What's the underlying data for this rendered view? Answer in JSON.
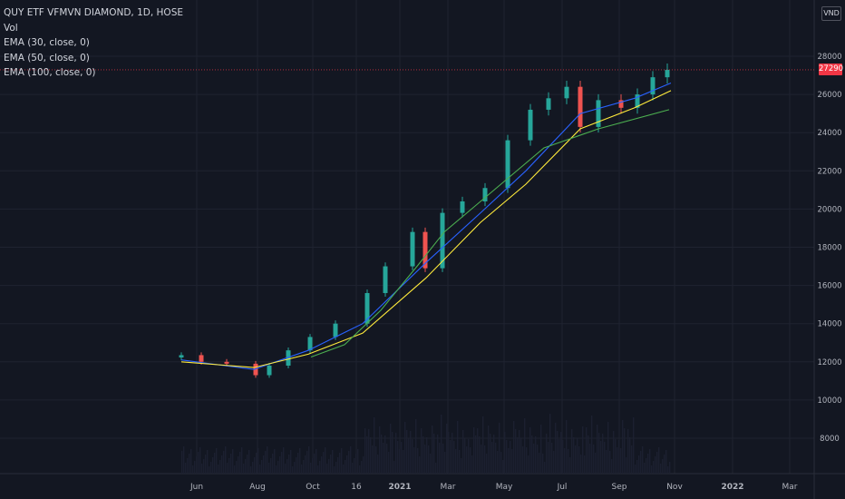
{
  "legend": {
    "title": "QUY ETF VFMVN DIAMOND, 1D, HOSE",
    "vol": "Vol",
    "ema30": "EMA (30, close, 0)",
    "ema50": "EMA (50, close, 0)",
    "ema100": "EMA (100, close, 0)"
  },
  "currency": "VND",
  "last_price_label": "27290",
  "colors": {
    "background": "#131722",
    "grid": "#1f2330",
    "up": "#26a69a",
    "down": "#ef5350",
    "ema30": "#2962ff",
    "ema50": "#ffeb3b",
    "ema100": "#4caf50",
    "last_price": "#f23645",
    "axis_text": "#b2b5be"
  },
  "chart_data": {
    "type": "candlestick",
    "title": "QUY ETF VFMVN DIAMOND, 1D, HOSE",
    "ylim": [
      7000,
      28500
    ],
    "y_ticks": [
      8000,
      10000,
      12000,
      14000,
      16000,
      18000,
      20000,
      22000,
      24000,
      26000,
      28000
    ],
    "x_ticks": [
      "Jun",
      "Aug",
      "Oct",
      "16",
      "2021",
      "Mar",
      "May",
      "Jul",
      "Sep",
      "Nov",
      "2022",
      "Mar"
    ],
    "last_price": 27290,
    "candles": [
      {
        "date": "2020-05",
        "close": 12350
      },
      {
        "date": "2020-06",
        "close": 12000
      },
      {
        "date": "2020-07",
        "close": 11900
      },
      {
        "date": "2020-08",
        "close": 11300
      },
      {
        "date": "2020-08-15",
        "close": 11800
      },
      {
        "date": "2020-09",
        "close": 12600
      },
      {
        "date": "2020-10",
        "close": 13300
      },
      {
        "date": "2020-11",
        "close": 14000
      },
      {
        "date": "2020-12",
        "close": 15600
      },
      {
        "date": "2020-12-15",
        "close": 17000
      },
      {
        "date": "2021-01",
        "close": 18800
      },
      {
        "date": "2021-01-15",
        "close": 16900
      },
      {
        "date": "2021-02",
        "close": 19800
      },
      {
        "date": "2021-03",
        "close": 20400
      },
      {
        "date": "2021-04",
        "close": 21100
      },
      {
        "date": "2021-05",
        "close": 23600
      },
      {
        "date": "2021-05-15",
        "close": 25200
      },
      {
        "date": "2021-06",
        "close": 25800
      },
      {
        "date": "2021-07",
        "close": 26400
      },
      {
        "date": "2021-07-15",
        "close": 24300
      },
      {
        "date": "2021-08",
        "close": 25700
      },
      {
        "date": "2021-09",
        "close": 25300
      },
      {
        "date": "2021-09-15",
        "close": 26000
      },
      {
        "date": "2021-10",
        "close": 26900
      },
      {
        "date": "2021-10-15",
        "close": 27290
      }
    ],
    "series": [
      {
        "name": "EMA (30, close, 0)",
        "values": [
          12100,
          11600,
          12600,
          14000,
          17200,
          19800,
          22000,
          25000,
          25800,
          26600
        ]
      },
      {
        "name": "EMA (50, close, 0)",
        "values": [
          12000,
          11700,
          12400,
          13500,
          16400,
          19300,
          21300,
          24200,
          25300,
          26200
        ]
      },
      {
        "name": "EMA (100, close, 0)",
        "values": [
          12250,
          12900,
          14700,
          17000,
          18800,
          20400,
          23200,
          24200,
          25200
        ]
      }
    ]
  }
}
